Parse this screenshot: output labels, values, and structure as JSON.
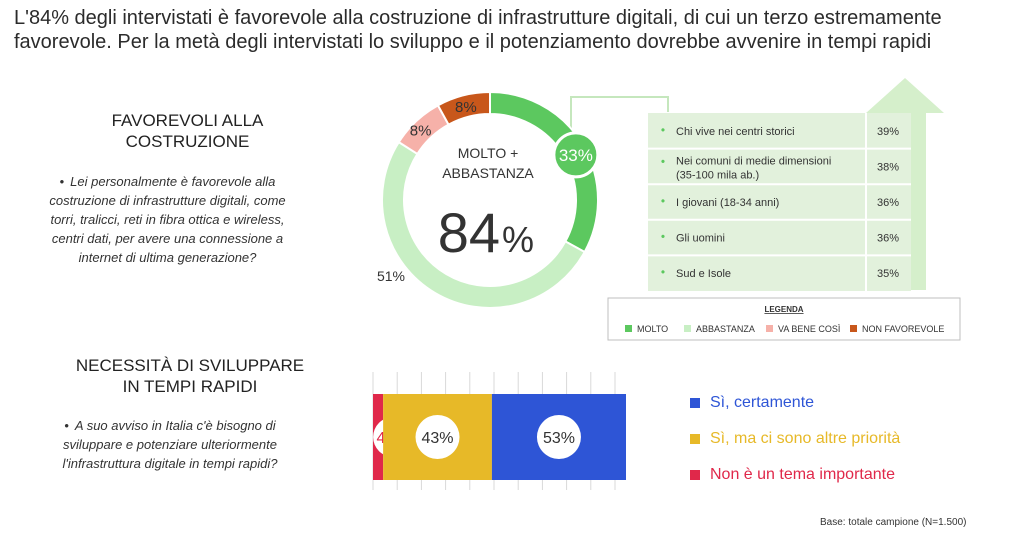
{
  "headline": "L'84% degli intervistati è favorevole alla costruzione di infrastrutture digitali, di cui un terzo estremamente favorevole. Per la metà degli intervistati lo sviluppo e il potenziamento dovrebbe avvenire in tempi rapidi",
  "colors": {
    "molto": "#5cc85f",
    "abbastanza": "#c8efc4",
    "va_bene_cosi": "#f6b1a9",
    "non_favorevole": "#c8571b",
    "table_bg": "#e2f1dc",
    "arrow": "#d5efcb",
    "bar_si_certamente": "#2e55d6",
    "bar_si_ma": "#e7b928",
    "bar_non_importante": "#e0284a"
  },
  "section1": {
    "title_line1": "FAVOREVOLI ALLA",
    "title_line2": "COSTRUZIONE",
    "question": "Lei personalmente è favorevole alla costruzione di infrastrutture digitali, come torri, tralicci, reti in fibra ottica e wireless, centri dati, per avere una connessione a internet di ultima generazione?"
  },
  "section2": {
    "title_line1": "NECESSITÀ DI SVILUPPARE",
    "title_line2": "IN TEMPI RAPIDI",
    "question": "A suo avviso in Italia c'è bisogno di sviluppare e potenziare ulteriormente l'infrastruttura digitale in tempi rapidi?"
  },
  "donut_center": {
    "line1": "MOLTO +",
    "line2": "ABBASTANZA",
    "value": "84",
    "unit": "%"
  },
  "segment_table": [
    {
      "label": "Chi vive nei centri storici",
      "value": "39%"
    },
    {
      "label_line1": "Nei comuni di medie dimensioni",
      "label_line2": "(35-100 mila ab.)",
      "value": "38%"
    },
    {
      "label": "I giovani (18-34 anni)",
      "value": "36%"
    },
    {
      "label": "Gli uomini",
      "value": "36%"
    },
    {
      "label": "Sud e Isole",
      "value": "35%"
    }
  ],
  "legend": {
    "title": "LEGENDA",
    "items": [
      {
        "label": "MOLTO",
        "color": "#5cc85f"
      },
      {
        "label": "ABBASTANZA",
        "color": "#c8efc4"
      },
      {
        "label": "VA BENE COSÌ",
        "color": "#f6b1a9"
      },
      {
        "label": "NON FAVOREVOLE",
        "color": "#c8571b"
      }
    ]
  },
  "bar_legend": [
    {
      "label": "Sì, certamente",
      "color": "#2e55d6"
    },
    {
      "label": "Sì, ma ci sono altre priorità",
      "color": "#e7b928"
    },
    {
      "label": "Non è un tema importante",
      "color": "#e0284a"
    }
  ],
  "base_note": "Base: totale campione (N=1.500)",
  "chart_data": [
    {
      "type": "pie",
      "categories": [
        "MOLTO",
        "ABBASTANZA",
        "VA BENE COSÌ",
        "NON FAVOREVOLE"
      ],
      "values": [
        33,
        51,
        8,
        8
      ],
      "labels": [
        "33%",
        "51%",
        "8%",
        "8%"
      ]
    },
    {
      "type": "bar",
      "categories": [
        "Non è un tema importante",
        "Sì, ma ci sono altre priorità",
        "Sì, certamente"
      ],
      "values": [
        4,
        43,
        53
      ],
      "labels": [
        "4%",
        "43%",
        "53%"
      ],
      "stacked": true,
      "orientation": "horizontal"
    }
  ]
}
